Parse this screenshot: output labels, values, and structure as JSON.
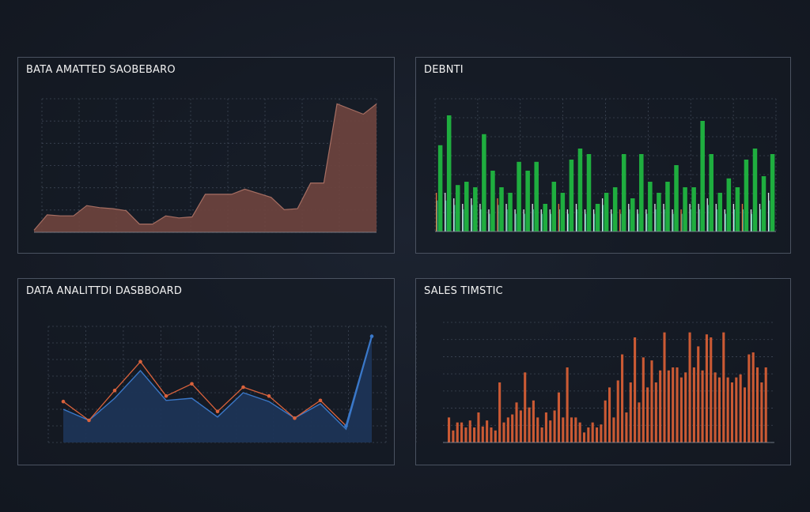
{
  "colors": {
    "background": "#161c26",
    "panel_border": "#4a5260",
    "grid": "#3d4654",
    "area_fill": "#6e433e",
    "area_stroke": "#a66e62",
    "bar_green": "#1fae3f",
    "bar_thin": "#dfe5ea",
    "bar_thin_orange": "#e0723c",
    "line_orange": "#d9623c",
    "line_blue": "#3a78c9",
    "line_fill": "#1c3456",
    "bar_orange": "#cb5a34"
  },
  "panels": [
    {
      "title": "BATA AMATTED SAOBEBARO",
      "chart_data": {
        "type": "area",
        "x_tick_labels": [
          "",
          "",
          "",
          "",
          "",
          "",
          "",
          ""
        ],
        "y_tick_labels": [
          "",
          "",
          "",
          ""
        ],
        "x": [
          0,
          1,
          2,
          3,
          4,
          5,
          6,
          7,
          8,
          9,
          10,
          11,
          12,
          13,
          14,
          15,
          16,
          17,
          18,
          19,
          20,
          21,
          22,
          23,
          24,
          25,
          26
        ],
        "values": [
          2,
          17,
          16,
          16,
          26,
          24,
          23,
          21,
          8,
          8,
          16,
          14,
          15,
          37,
          37,
          37,
          42,
          38,
          34,
          22,
          23,
          48,
          48,
          125,
          120,
          115,
          125
        ],
        "ylim": [
          0,
          130
        ]
      }
    },
    {
      "title": "DEBNTI",
      "chart_data": {
        "type": "bar",
        "y_tick_labels": [
          "",
          "",
          "",
          "",
          "",
          "",
          "",
          ""
        ],
        "series": [
          {
            "values": [
              78,
              105,
              42,
              45,
              40,
              88,
              55,
              40,
              35,
              63,
              55,
              63,
              25,
              45,
              35,
              65,
              75,
              70,
              25,
              35,
              40,
              70,
              30,
              70,
              45,
              35,
              45,
              60,
              40,
              40,
              100,
              70,
              35,
              48,
              40,
              65,
              75,
              50,
              70
            ]
          },
          {
            "values": [
              35,
              35,
              30,
              25,
              30,
              25,
              20,
              30,
              25,
              20,
              20,
              25,
              20,
              20,
              25,
              20,
              25,
              20,
              20,
              30,
              20,
              20,
              25,
              20,
              20,
              25,
              25,
              20,
              20,
              25,
              25,
              30,
              25,
              20,
              25,
              25,
              20,
              25,
              35
            ]
          }
        ],
        "ylim": [
          0,
          120
        ]
      }
    },
    {
      "title": "DATA ANALITTDI DASBBOARD",
      "chart_data": {
        "type": "line",
        "x_tick_labels": [
          "",
          "",
          "",
          "",
          "",
          "",
          ""
        ],
        "y_tick_labels": [
          "",
          "",
          "",
          "",
          "",
          "",
          ""
        ],
        "series": [
          {
            "values": [
              37,
              20,
              47,
              73,
              42,
              53,
              28,
              50,
              42,
              22,
              38,
              15,
              96
            ]
          },
          {
            "values": [
              30,
              20,
              40,
              65,
              38,
              40,
              23,
              45,
              37,
              22,
              35,
              12,
              96
            ]
          }
        ],
        "ylim": [
          0,
          105
        ]
      }
    },
    {
      "title": "SALES TIMSTIC",
      "chart_data": {
        "type": "bar",
        "x_tick_labels": [
          "",
          "",
          "",
          "",
          ""
        ],
        "y_tick_labels": [
          "",
          "",
          "",
          "",
          "",
          "",
          "",
          ""
        ],
        "values": [
          25,
          12,
          20,
          20,
          15,
          22,
          15,
          30,
          16,
          22,
          15,
          12,
          60,
          20,
          25,
          28,
          40,
          32,
          70,
          35,
          42,
          25,
          15,
          30,
          22,
          32,
          50,
          25,
          75,
          25,
          25,
          20,
          10,
          15,
          20,
          15,
          18,
          42,
          55,
          25,
          62,
          88,
          30,
          60,
          105,
          40,
          85,
          55,
          82,
          60,
          72,
          110,
          72,
          75,
          75,
          65,
          70,
          110,
          75,
          96,
          72,
          108,
          105,
          70,
          65,
          110,
          65,
          60,
          65,
          68,
          55,
          88,
          90,
          75,
          60,
          75
        ],
        "ylim": [
          0,
          120
        ]
      }
    }
  ]
}
